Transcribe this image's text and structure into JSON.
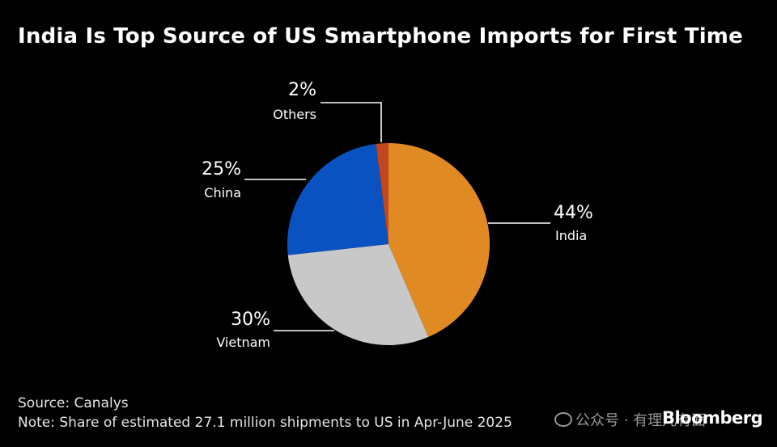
{
  "chart_data": {
    "type": "pie",
    "title": "India Is Top Source of US Smartphone Imports for First Time",
    "slices": [
      {
        "name": "India",
        "value": 44,
        "label": "44%",
        "color": "#E08A24"
      },
      {
        "name": "Vietnam",
        "value": 30,
        "label": "30%",
        "color": "#C8C8C8"
      },
      {
        "name": "China",
        "value": 25,
        "label": "25%",
        "color": "#0A52C2"
      },
      {
        "name": "Others",
        "value": 2,
        "label": "2%",
        "color": "#C2461E"
      }
    ]
  },
  "footer": {
    "source": "Source: Canalys",
    "note": "Note: Share of estimated 27.1 million shipments to US in Apr-June 2025"
  },
  "watermark": {
    "text": "公众号 · 有理儿有面"
  },
  "brand": "Bloomberg",
  "colors": {
    "background": "#000000",
    "text": "#FFFFFF"
  }
}
